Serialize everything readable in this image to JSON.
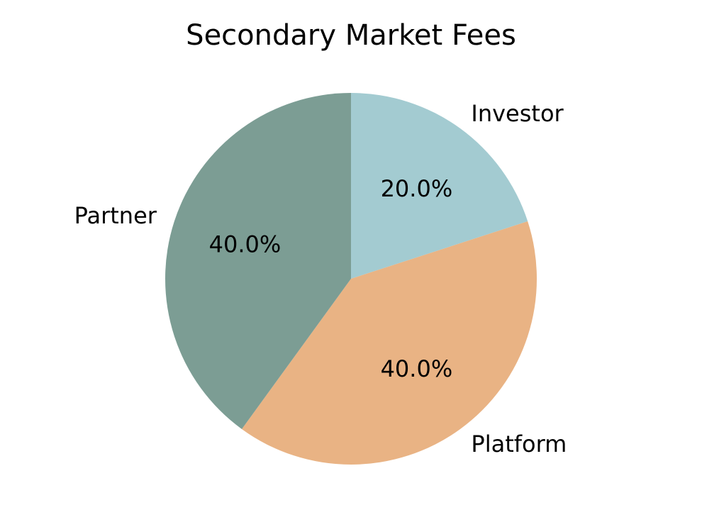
{
  "chart_data": {
    "type": "pie",
    "title": "Secondary Market Fees",
    "slices": [
      {
        "label": "Investor",
        "value": 20.0,
        "pct_label": "20.0%",
        "color": "#a3cbd1"
      },
      {
        "label": "Platform",
        "value": 40.0,
        "pct_label": "40.0%",
        "color": "#e9b384"
      },
      {
        "label": "Partner",
        "value": 40.0,
        "pct_label": "40.0%",
        "color": "#7c9d94"
      }
    ],
    "start_angle": "top (12 o'clock)",
    "direction": "clockwise",
    "legend": "none"
  }
}
